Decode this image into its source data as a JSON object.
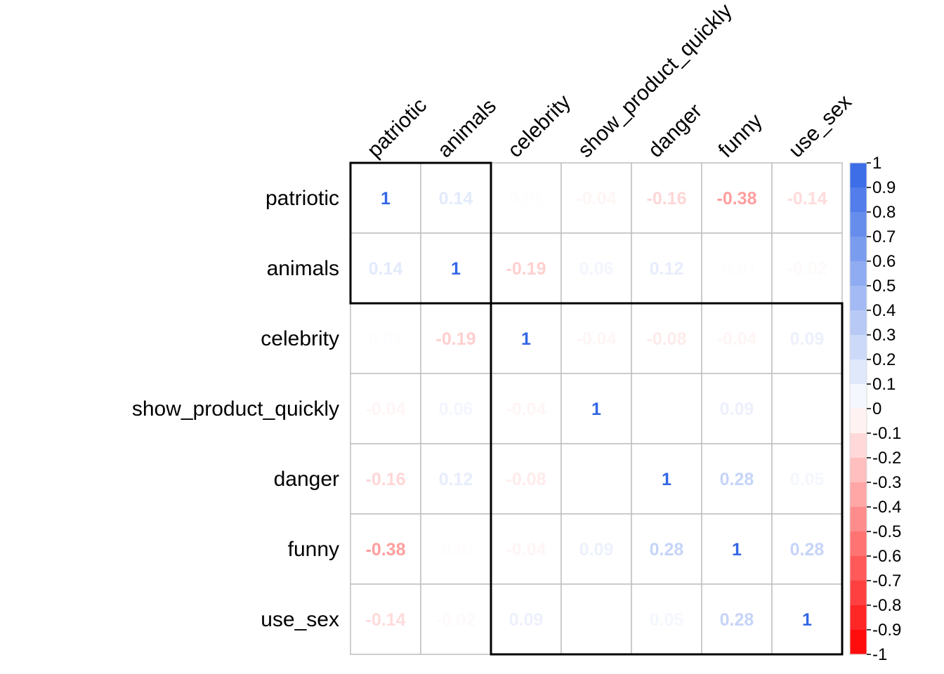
{
  "chart_data": {
    "type": "heatmap",
    "title": "",
    "xlabel": "",
    "ylabel": "",
    "variables": [
      "patriotic",
      "animals",
      "celebrity",
      "show_product_quickly",
      "danger",
      "funny",
      "use_sex"
    ],
    "matrix": [
      [
        "1",
        "0.14",
        "0.01",
        "-0.04",
        "-0.16",
        "-0.38",
        "-0.14"
      ],
      [
        "0.14",
        "1",
        "-0.19",
        "0.06",
        "0.12",
        "-0.01",
        "-0.02"
      ],
      [
        "0.01",
        "-0.19",
        "1",
        "-0.04",
        "-0.08",
        "-0.04",
        "0.09"
      ],
      [
        "-0.04",
        "0.06",
        "-0.04",
        "1",
        "0",
        "0.09",
        "0"
      ],
      [
        "-0.16",
        "0.12",
        "-0.08",
        "0",
        "1",
        "0.28",
        "0.05"
      ],
      [
        "-0.38",
        "-0.01",
        "-0.04",
        "0.09",
        "0.28",
        "1",
        "0.28"
      ],
      [
        "-0.14",
        "-0.02",
        "0.09",
        "0",
        "0.05",
        "0.28",
        "1"
      ]
    ],
    "clusters": [
      [
        0,
        1
      ],
      [
        2,
        6
      ]
    ],
    "colorbar": {
      "range": [
        -1,
        1
      ],
      "ticks": [
        "1",
        "0.9",
        "0.8",
        "0.7",
        "0.6",
        "0.5",
        "0.4",
        "0.3",
        "0.2",
        "0.1",
        "0",
        "-0.1",
        "-0.2",
        "-0.3",
        "-0.4",
        "-0.5",
        "-0.6",
        "-0.7",
        "-0.8",
        "-0.9",
        "-1"
      ],
      "positive_color": "#3366E6",
      "negative_color": "#FF0000",
      "neutral_color": "#FFFFFF"
    }
  }
}
